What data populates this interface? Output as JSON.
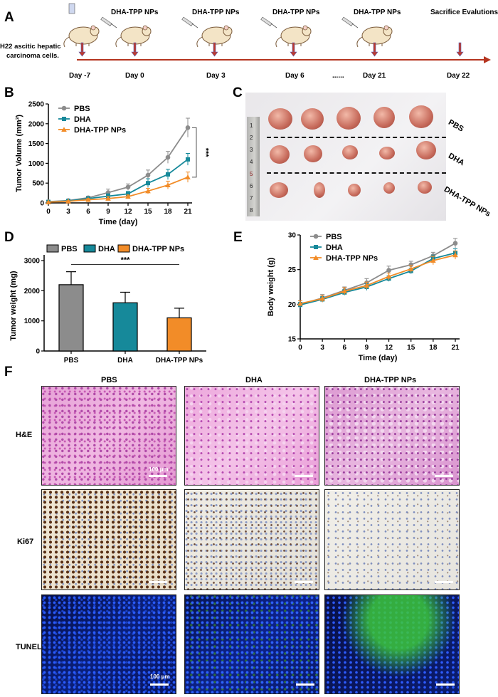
{
  "panels": {
    "A": "A",
    "B": "B",
    "C": "C",
    "D": "D",
    "E": "E",
    "F": "F"
  },
  "timeline": {
    "cells_label_line1": "H22 ascitic hepatic",
    "cells_label_line2": "carcinoma cells.",
    "injection_labels": [
      "DHA-TPP NPs",
      "DHA-TPP NPs",
      "DHA-TPP NPs",
      "DHA-TPP NPs"
    ],
    "sacrifice_label": "Sacrifice Evalutions",
    "days": [
      "Day -7",
      "Day 0",
      "Day 3",
      "Day 6",
      "......",
      "Day 21",
      "Day 22"
    ]
  },
  "photo": {
    "rows": [
      "PBS",
      "DHA",
      "DHA-TPP NPs"
    ],
    "ruler_ticks": [
      "1",
      "2",
      "3",
      "4",
      "5",
      "6",
      "7",
      "8"
    ]
  },
  "micro": {
    "columns": [
      "PBS",
      "DHA",
      "DHA-TPP NPs"
    ],
    "rows": [
      "H&E",
      "Ki67",
      "TUNEL"
    ],
    "scale_label": "100 μm"
  },
  "colors": {
    "pbs": "#8c8c8c",
    "dha": "#16899a",
    "tpp": "#f28c28"
  },
  "chart_data": [
    {
      "type": "line",
      "panel": "B",
      "xlabel": "Time (day)",
      "ylabel": "Tumor Volume (mm³)",
      "x": [
        0,
        3,
        6,
        9,
        12,
        15,
        18,
        21
      ],
      "xlim": [
        0,
        21
      ],
      "ylim": [
        0,
        2500
      ],
      "yticks": [
        0,
        500,
        1000,
        1500,
        2000,
        2500
      ],
      "legend": "top-left",
      "annotation": "***",
      "series": [
        {
          "name": "PBS",
          "values": [
            30,
            60,
            130,
            260,
            400,
            700,
            1150,
            1900
          ],
          "err": [
            15,
            20,
            40,
            90,
            80,
            130,
            150,
            240
          ]
        },
        {
          "name": "DHA",
          "values": [
            25,
            50,
            110,
            170,
            230,
            500,
            720,
            1100
          ],
          "err": [
            10,
            20,
            40,
            60,
            60,
            110,
            130,
            150
          ]
        },
        {
          "name": "DHA-TPP NPs",
          "values": [
            20,
            40,
            80,
            110,
            160,
            300,
            450,
            650
          ],
          "err": [
            10,
            15,
            30,
            50,
            40,
            70,
            100,
            130
          ]
        }
      ]
    },
    {
      "type": "bar",
      "panel": "D",
      "ylabel": "Tumor weight (mg)",
      "categories": [
        "PBS",
        "DHA",
        "DHA-TPP NPs"
      ],
      "values": [
        2200,
        1600,
        1100
      ],
      "err": [
        430,
        350,
        320
      ],
      "ylim": [
        0,
        3000
      ],
      "yticks": [
        0,
        1000,
        2000,
        3000
      ],
      "legend": "top",
      "annotation": "***"
    },
    {
      "type": "line",
      "panel": "E",
      "xlabel": "Time (day)",
      "ylabel": "Body weight (g)",
      "x": [
        0,
        3,
        6,
        9,
        12,
        15,
        18,
        21
      ],
      "xlim": [
        0,
        21
      ],
      "ylim": [
        15,
        30
      ],
      "yticks": [
        15,
        20,
        25,
        30
      ],
      "legend": "top-left",
      "series": [
        {
          "name": "PBS",
          "values": [
            20.0,
            20.9,
            22.0,
            23.1,
            24.9,
            25.7,
            27.0,
            28.8
          ],
          "err": [
            0.5,
            0.5,
            0.5,
            0.6,
            0.6,
            0.5,
            0.5,
            0.7
          ]
        },
        {
          "name": "DHA",
          "values": [
            19.9,
            20.7,
            21.7,
            22.5,
            23.7,
            24.8,
            26.6,
            27.4
          ],
          "err": [
            0.4,
            0.4,
            0.4,
            0.5,
            0.4,
            0.4,
            0.5,
            0.6
          ]
        },
        {
          "name": "DHA-TPP NPs",
          "values": [
            20.1,
            20.8,
            21.9,
            22.7,
            24.0,
            25.1,
            26.3,
            27.1
          ],
          "err": [
            0.4,
            0.5,
            0.5,
            0.5,
            0.5,
            0.5,
            0.6,
            0.6
          ]
        }
      ]
    }
  ]
}
